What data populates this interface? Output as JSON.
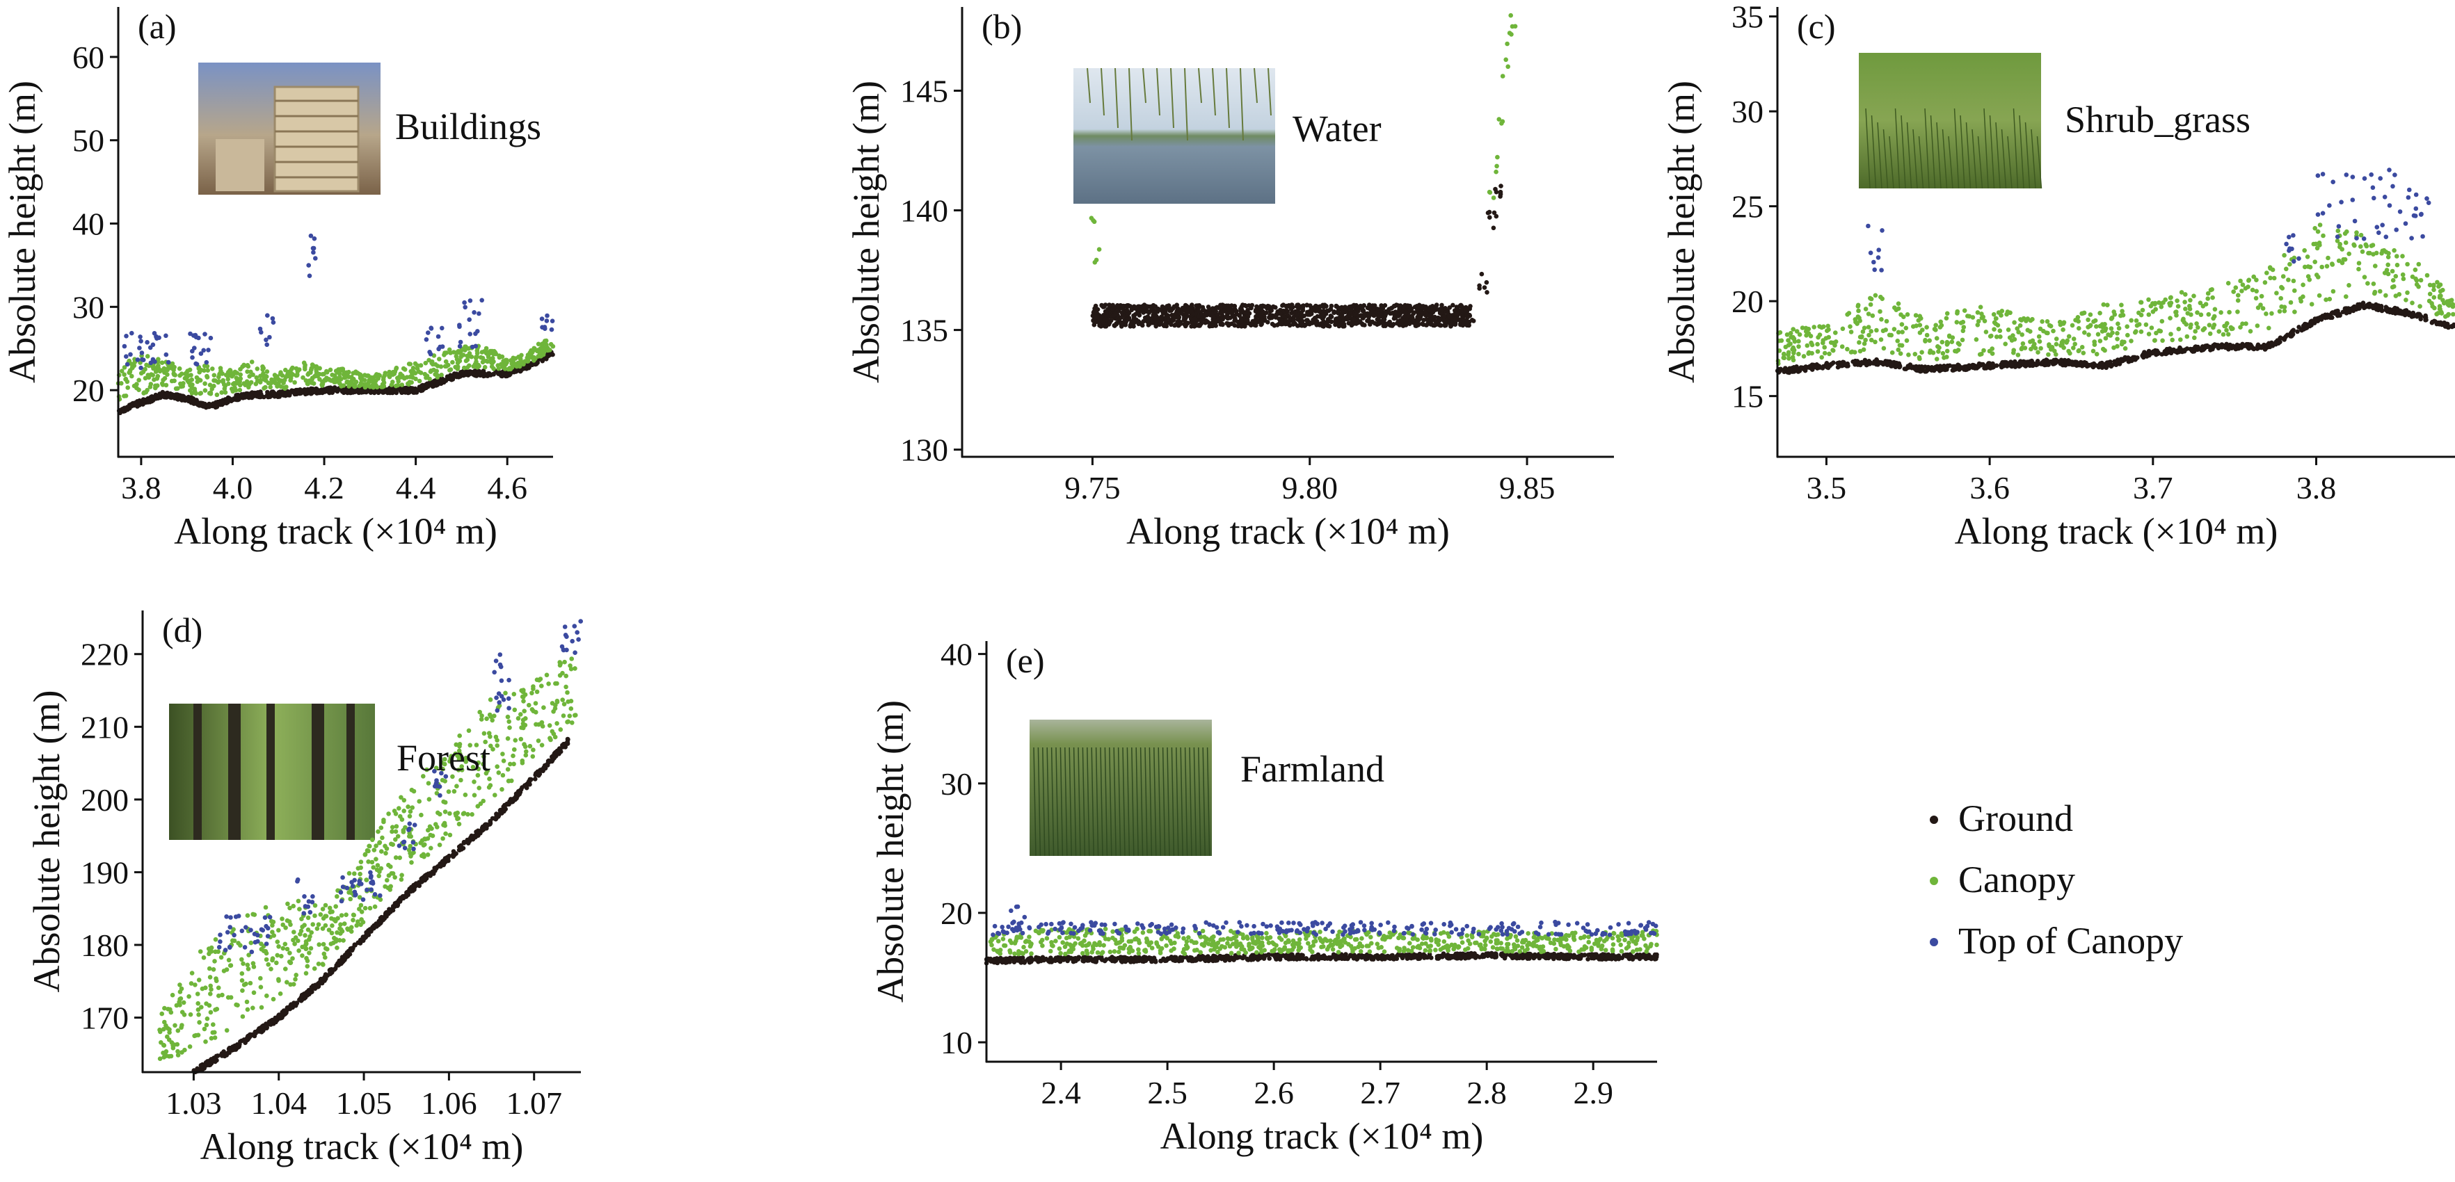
{
  "colors": {
    "ground": "#231815",
    "canopy": "#6fb53a",
    "top": "#3b4aa0",
    "axis": "#111111"
  },
  "legend": [
    {
      "key": "ground",
      "label": "Ground"
    },
    {
      "key": "canopy",
      "label": "Canopy"
    },
    {
      "key": "top",
      "label": "Top of Canopy"
    }
  ],
  "chart_data": [
    {
      "type": "scatter",
      "label": "(a)",
      "title": "Buildings",
      "photo": "buildings-photo",
      "xlabel": "Along track (×10⁴ m)",
      "ylabel": "Absolute height (m)",
      "xlim": [
        3.75,
        4.7
      ],
      "ylim": [
        12,
        66
      ],
      "xticks": [
        "3.8",
        "4.0",
        "4.2",
        "4.4",
        "4.6"
      ],
      "xtick_values": [
        3.8,
        4.0,
        4.2,
        4.4,
        4.6
      ],
      "yticks": [
        "20",
        "30",
        "40",
        "50",
        "60"
      ],
      "ytick_values": [
        20,
        30,
        40,
        50,
        60
      ],
      "ground": [
        [
          3.75,
          17.5
        ],
        [
          3.8,
          18.5
        ],
        [
          3.85,
          19.5
        ],
        [
          3.9,
          19
        ],
        [
          3.95,
          18
        ],
        [
          4.0,
          19
        ],
        [
          4.05,
          19.5
        ],
        [
          4.1,
          19.5
        ],
        [
          4.15,
          19.8
        ],
        [
          4.2,
          20
        ],
        [
          4.25,
          20
        ],
        [
          4.3,
          20
        ],
        [
          4.35,
          20
        ],
        [
          4.4,
          20
        ],
        [
          4.45,
          21
        ],
        [
          4.5,
          22
        ],
        [
          4.55,
          22
        ],
        [
          4.6,
          22
        ],
        [
          4.65,
          23
        ],
        [
          4.7,
          24.5
        ]
      ],
      "canopy": [
        [
          3.75,
          21
        ],
        [
          3.8,
          22
        ],
        [
          3.85,
          22
        ],
        [
          3.9,
          21
        ],
        [
          3.95,
          21
        ],
        [
          4.0,
          21
        ],
        [
          4.05,
          22
        ],
        [
          4.1,
          21
        ],
        [
          4.15,
          22
        ],
        [
          4.2,
          21.5
        ],
        [
          4.25,
          21.5
        ],
        [
          4.3,
          21
        ],
        [
          4.35,
          21.5
        ],
        [
          4.4,
          22
        ],
        [
          4.45,
          23
        ],
        [
          4.5,
          24
        ],
        [
          4.55,
          24
        ],
        [
          4.6,
          23
        ],
        [
          4.65,
          24
        ],
        [
          4.7,
          26
        ]
      ],
      "top_clusters": [
        {
          "x": [
            3.76,
            3.86
          ],
          "y": [
            22.5,
            27
          ]
        },
        {
          "x": [
            3.9,
            3.96
          ],
          "y": [
            23,
            27
          ]
        },
        {
          "x": [
            4.06,
            4.09
          ],
          "y": [
            24,
            29
          ]
        },
        {
          "x": [
            4.165,
            4.185
          ],
          "y": [
            33,
            39
          ]
        },
        {
          "x": [
            4.42,
            4.46
          ],
          "y": [
            24,
            28
          ]
        },
        {
          "x": [
            4.49,
            4.55
          ],
          "y": [
            25,
            31
          ]
        },
        {
          "x": [
            4.67,
            4.7
          ],
          "y": [
            27,
            29
          ]
        }
      ]
    },
    {
      "type": "scatter",
      "label": "(b)",
      "title": "Water",
      "photo": "water-photo",
      "xlabel": "Along track (×10⁴ m)",
      "ylabel": "Absolute height (m)",
      "xlim": [
        9.72,
        9.87
      ],
      "ylim": [
        129.7,
        148.5
      ],
      "xticks": [
        "9.75",
        "9.80",
        "9.85"
      ],
      "xtick_values": [
        9.75,
        9.8,
        9.85
      ],
      "yticks": [
        "130",
        "135",
        "140",
        "145"
      ],
      "ytick_values": [
        130,
        135,
        140,
        145
      ],
      "ground": [
        [
          9.75,
          135.6
        ],
        [
          9.76,
          135.6
        ],
        [
          9.77,
          135.6
        ],
        [
          9.78,
          135.6
        ],
        [
          9.79,
          135.6
        ],
        [
          9.8,
          135.6
        ],
        [
          9.81,
          135.6
        ],
        [
          9.82,
          135.6
        ],
        [
          9.83,
          135.6
        ],
        [
          9.837,
          135.6
        ],
        [
          9.84,
          137.0
        ],
        [
          9.842,
          139.5
        ],
        [
          9.843,
          141.0
        ]
      ],
      "canopy": [
        [
          9.75,
          139.8
        ],
        [
          9.751,
          138.0
        ],
        [
          9.842,
          140.5
        ],
        [
          9.843,
          142.0
        ],
        [
          9.844,
          144.0
        ],
        [
          9.845,
          146.0
        ],
        [
          9.846,
          147.2
        ],
        [
          9.847,
          147.8
        ]
      ],
      "top_clusters": []
    },
    {
      "type": "scatter",
      "label": "(c)",
      "title": "Shrub_grass",
      "photo": "shrub-grass-photo",
      "xlabel": "Along track (×10⁴ m)",
      "ylabel": "Absolute height (m)",
      "xlim": [
        3.47,
        3.885
      ],
      "ylim": [
        11.8,
        35.5
      ],
      "xticks": [
        "3.5",
        "3.6",
        "3.7",
        "3.8"
      ],
      "xtick_values": [
        3.5,
        3.6,
        3.7,
        3.8
      ],
      "yticks": [
        "15",
        "20",
        "25",
        "30",
        "35"
      ],
      "ytick_values": [
        15,
        20,
        25,
        30,
        35
      ],
      "ground": [
        [
          3.47,
          16.3
        ],
        [
          3.5,
          16.6
        ],
        [
          3.53,
          16.8
        ],
        [
          3.56,
          16.4
        ],
        [
          3.6,
          16.6
        ],
        [
          3.64,
          16.8
        ],
        [
          3.67,
          16.6
        ],
        [
          3.7,
          17.3
        ],
        [
          3.74,
          17.6
        ],
        [
          3.77,
          17.6
        ],
        [
          3.8,
          19.0
        ],
        [
          3.83,
          19.8
        ],
        [
          3.86,
          19.3
        ],
        [
          3.885,
          18.6
        ]
      ],
      "canopy": [
        [
          3.47,
          17.5
        ],
        [
          3.5,
          18
        ],
        [
          3.53,
          19
        ],
        [
          3.56,
          18
        ],
        [
          3.6,
          18.5
        ],
        [
          3.64,
          18
        ],
        [
          3.67,
          18.5
        ],
        [
          3.7,
          19
        ],
        [
          3.74,
          19.5
        ],
        [
          3.77,
          20
        ],
        [
          3.8,
          22
        ],
        [
          3.83,
          22
        ],
        [
          3.86,
          21
        ],
        [
          3.885,
          19.5
        ]
      ],
      "top_clusters": [
        {
          "x": [
            3.525,
            3.535
          ],
          "y": [
            21,
            24
          ]
        },
        {
          "x": [
            3.78,
            3.79
          ],
          "y": [
            22,
            24
          ]
        },
        {
          "x": [
            3.8,
            3.87
          ],
          "y": [
            23,
            27
          ]
        }
      ]
    },
    {
      "type": "scatter",
      "label": "(d)",
      "title": "Forest",
      "photo": "forest-photo",
      "xlabel": "Along track (×10⁴ m)",
      "ylabel": "Absolute height (m)",
      "xlim": [
        1.024,
        1.0755
      ],
      "ylim": [
        162.5,
        226
      ],
      "xticks": [
        "1.03",
        "1.04",
        "1.05",
        "1.06",
        "1.07"
      ],
      "xtick_values": [
        1.03,
        1.04,
        1.05,
        1.06,
        1.07
      ],
      "yticks": [
        "170",
        "180",
        "190",
        "200",
        "210",
        "220"
      ],
      "ytick_values": [
        170,
        180,
        190,
        200,
        210,
        220
      ],
      "ground": [
        [
          1.03,
          162.5
        ],
        [
          1.035,
          166
        ],
        [
          1.04,
          170
        ],
        [
          1.045,
          175
        ],
        [
          1.05,
          181
        ],
        [
          1.055,
          187
        ],
        [
          1.06,
          192
        ],
        [
          1.065,
          197
        ],
        [
          1.07,
          203
        ],
        [
          1.074,
          208
        ]
      ],
      "canopy": [
        [
          1.026,
          167
        ],
        [
          1.03,
          172
        ],
        [
          1.035,
          176
        ],
        [
          1.04,
          180
        ],
        [
          1.045,
          181
        ],
        [
          1.05,
          188
        ],
        [
          1.055,
          196
        ],
        [
          1.06,
          201
        ],
        [
          1.065,
          207
        ],
        [
          1.07,
          211
        ],
        [
          1.075,
          216
        ]
      ],
      "top_clusters": [
        {
          "x": [
            1.033,
            1.039
          ],
          "y": [
            179,
            184
          ]
        },
        {
          "x": [
            1.042,
            1.044
          ],
          "y": [
            184,
            189
          ]
        },
        {
          "x": [
            1.047,
            1.052
          ],
          "y": [
            186,
            190
          ]
        },
        {
          "x": [
            1.054,
            1.056
          ],
          "y": [
            193,
            197
          ]
        },
        {
          "x": [
            1.058,
            1.06
          ],
          "y": [
            200,
            204
          ]
        },
        {
          "x": [
            1.065,
            1.068
          ],
          "y": [
            212,
            220
          ]
        },
        {
          "x": [
            1.073,
            1.0755
          ],
          "y": [
            219,
            225
          ]
        }
      ]
    },
    {
      "type": "scatter",
      "label": "(e)",
      "title": "Farmland",
      "photo": "farmland-photo",
      "xlabel": "Along track (×10⁴ m)",
      "ylabel": "Absolute height (m)",
      "xlim": [
        2.33,
        2.96
      ],
      "ylim": [
        8.5,
        41
      ],
      "xticks": [
        "2.4",
        "2.5",
        "2.6",
        "2.7",
        "2.8",
        "2.9"
      ],
      "xtick_values": [
        2.4,
        2.5,
        2.6,
        2.7,
        2.8,
        2.9
      ],
      "yticks": [
        "10",
        "20",
        "30",
        "40"
      ],
      "ytick_values": [
        10,
        20,
        30,
        40
      ],
      "ground": [
        [
          2.33,
          16.3
        ],
        [
          2.4,
          16.4
        ],
        [
          2.5,
          16.4
        ],
        [
          2.6,
          16.6
        ],
        [
          2.7,
          16.6
        ],
        [
          2.8,
          16.7
        ],
        [
          2.9,
          16.6
        ],
        [
          2.96,
          16.6
        ]
      ],
      "canopy": [
        [
          2.33,
          17.6
        ],
        [
          2.4,
          17.8
        ],
        [
          2.5,
          17.8
        ],
        [
          2.6,
          17.7
        ],
        [
          2.7,
          17.8
        ],
        [
          2.8,
          17.8
        ],
        [
          2.9,
          17.7
        ],
        [
          2.96,
          17.8
        ]
      ],
      "top_clusters": [
        {
          "x": [
            2.35,
            2.37
          ],
          "y": [
            18.5,
            20.5
          ]
        },
        {
          "x": [
            2.33,
            2.96
          ],
          "y": [
            18.3,
            19.3
          ]
        }
      ]
    }
  ]
}
